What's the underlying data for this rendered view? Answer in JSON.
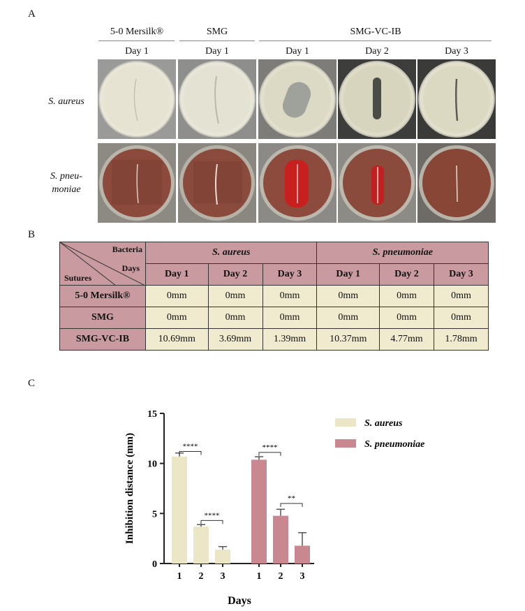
{
  "panels": {
    "a": "A",
    "b": "B",
    "c": "C"
  },
  "panel_a": {
    "groups": [
      "5-0 Mersilk®",
      "SMG",
      "SMG-VC-IB"
    ],
    "days": [
      "Day 1",
      "Day 1",
      "Day 1",
      "Day 2",
      "Day 3"
    ],
    "rows": [
      {
        "label_line1": "S. aureus",
        "label_line2": ""
      },
      {
        "label_line1": "S. pneu-",
        "label_line2": "moniae"
      }
    ]
  },
  "table": {
    "corner_bacteria": "Bacteria",
    "corner_days": "Days",
    "corner_sutures": "Sutures",
    "bacteria": [
      "S. aureus",
      "S. pneumoniae"
    ],
    "day_headers": [
      "Day 1",
      "Day 2",
      "Day 3",
      "Day 1",
      "Day 2",
      "Day 3"
    ],
    "rows": [
      {
        "label": "5-0 Mersilk®",
        "values": [
          "0mm",
          "0mm",
          "0mm",
          "0mm",
          "0mm",
          "0mm"
        ]
      },
      {
        "label": "SMG",
        "values": [
          "0mm",
          "0mm",
          "0mm",
          "0mm",
          "0mm",
          "0mm"
        ]
      },
      {
        "label": "SMG-VC-IB",
        "values": [
          "10.69mm",
          "3.69mm",
          "1.39mm",
          "10.37mm",
          "4.77mm",
          "1.78mm"
        ]
      }
    ],
    "colors": {
      "header": "#c99ba0",
      "cell": "#f0ebcf"
    }
  },
  "chart_data": {
    "type": "bar",
    "categories": [
      "1",
      "2",
      "3"
    ],
    "series": [
      {
        "name": "S. aureus",
        "values": [
          10.69,
          3.69,
          1.39
        ],
        "errors": [
          0.35,
          0.2,
          0.3
        ],
        "color": "#ebe6c6"
      },
      {
        "name": "S. pneumoniae",
        "values": [
          10.37,
          4.77,
          1.78
        ],
        "errors": [
          0.3,
          0.65,
          1.3
        ],
        "color": "#c9888f"
      }
    ],
    "xlabel": "Days",
    "ylabel": "Inhibition distance (mm)",
    "ylim": [
      0,
      15
    ],
    "yticks": [
      0,
      5,
      10,
      15
    ],
    "legend_position": "top-right",
    "significance": [
      {
        "series": 0,
        "from": 0,
        "to": 1,
        "label": "****",
        "y": 11.2
      },
      {
        "series": 0,
        "from": 1,
        "to": 2,
        "label": "****",
        "y": 4.3
      },
      {
        "series": 1,
        "from": 0,
        "to": 1,
        "label": "****",
        "y": 11.1
      },
      {
        "series": 1,
        "from": 1,
        "to": 2,
        "label": "**",
        "y": 6.0
      }
    ]
  }
}
